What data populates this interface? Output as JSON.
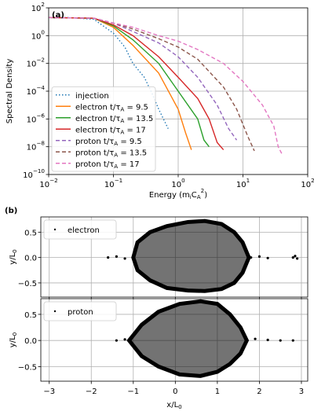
{
  "chart_data": [
    {
      "type": "line",
      "label": "(a)",
      "xlabel": "Energy (m_{i}C_{A}^{2})",
      "ylabel": "Spectral Density",
      "log_x": true,
      "log_y": true,
      "grid": true,
      "legend": "lower left",
      "xlim": [
        0.01,
        100
      ],
      "ylim": [
        1e-10,
        100
      ],
      "xticks": [
        {
          "value": 0.01,
          "label": "10^{−2}"
        },
        {
          "value": 0.1,
          "label": "10^{−1}"
        },
        {
          "value": 1,
          "label": "10^{0}"
        },
        {
          "value": 10,
          "label": "10^{1}"
        },
        {
          "value": 100,
          "label": "10^{2}"
        }
      ],
      "yticks": [
        {
          "value": 1e-10,
          "label": "10^{−10}"
        },
        {
          "value": 1e-08,
          "label": "10^{−8}"
        },
        {
          "value": 1e-06,
          "label": "10^{−6}"
        },
        {
          "value": 0.0001,
          "label": "10^{−4}"
        },
        {
          "value": 0.01,
          "label": "10^{−2}"
        },
        {
          "value": 1,
          "label": "10^{0}"
        },
        {
          "value": 100,
          "label": "10^{2}"
        }
      ],
      "series": [
        {
          "name": "injection",
          "color": "#1f77b4",
          "linestyle": "dotted",
          "x": [
            0.01,
            0.02,
            0.05,
            0.1,
            0.15,
            0.2,
            0.3,
            0.4,
            0.5,
            0.7
          ],
          "values": [
            20,
            20,
            15,
            1.5,
            0.15,
            0.01,
            0.001,
            6e-05,
            5e-06,
            2e-07
          ]
        },
        {
          "name": "electron t/τ_{A} = 9.5",
          "color": "#ff7f0e",
          "linestyle": "solid",
          "x": [
            0.01,
            0.05,
            0.1,
            0.2,
            0.5,
            1,
            1.3,
            1.6
          ],
          "values": [
            20,
            18,
            4,
            0.2,
            0.002,
            5e-06,
            1e-07,
            6e-09
          ]
        },
        {
          "name": "electron t/τ_{A} = 13.5",
          "color": "#2ca02c",
          "linestyle": "solid",
          "x": [
            0.01,
            0.05,
            0.1,
            0.2,
            0.5,
            1,
            2,
            2.5,
            3
          ],
          "values": [
            20,
            18,
            5,
            0.5,
            0.01,
            0.0001,
            1e-06,
            3e-08,
            1e-08
          ]
        },
        {
          "name": "electron t/τ_{A} = 17",
          "color": "#d62728",
          "linestyle": "solid",
          "x": [
            0.01,
            0.05,
            0.1,
            0.2,
            0.5,
            1,
            2,
            3,
            4,
            5
          ],
          "values": [
            20,
            18,
            6,
            1,
            0.03,
            0.001,
            3e-05,
            1e-06,
            2e-08,
            6e-09
          ]
        },
        {
          "name": "proton t/τ_{A} = 9.5",
          "color": "#9467bd",
          "linestyle": "dashed",
          "x": [
            0.01,
            0.05,
            0.1,
            0.2,
            0.5,
            1,
            2,
            4,
            6,
            8
          ],
          "values": [
            20,
            18,
            8,
            2,
            0.3,
            0.03,
            0.001,
            1e-05,
            2e-07,
            3e-08
          ]
        },
        {
          "name": "proton t/τ_{A} = 13.5",
          "color": "#8c564b",
          "linestyle": "dashed",
          "x": [
            0.01,
            0.05,
            0.1,
            0.2,
            0.5,
            1,
            2,
            5,
            8,
            12,
            15
          ],
          "values": [
            20,
            18,
            8,
            3,
            0.6,
            0.15,
            0.02,
            0.0002,
            5e-06,
            5e-08,
            5e-09
          ]
        },
        {
          "name": "proton t/τ_{A} = 17",
          "color": "#e377c2",
          "linestyle": "dashed",
          "x": [
            0.01,
            0.05,
            0.1,
            0.2,
            0.5,
            1,
            2,
            5,
            10,
            20,
            30,
            35,
            40
          ],
          "values": [
            20,
            18,
            8,
            4,
            1,
            0.4,
            0.1,
            0.01,
            0.0005,
            1e-05,
            3e-07,
            1e-08,
            3e-09
          ]
        }
      ]
    },
    {
      "type": "scatter",
      "label": "(b)",
      "ylabel": "y/L_{0}",
      "grid": true,
      "legend": "upper left",
      "xticklabels": false,
      "xlim": [
        -3.2,
        3.15
      ],
      "ylim": [
        -0.78,
        0.8
      ],
      "xticks": [
        {
          "value": -3,
          "label": "−3"
        },
        {
          "value": -2,
          "label": "−2"
        },
        {
          "value": -1,
          "label": "−1"
        },
        0,
        1,
        2,
        3
      ],
      "yticks": [
        {
          "value": -0.5,
          "label": "−0.5"
        },
        {
          "value": 0,
          "label": "0.0"
        },
        0.5
      ],
      "series": [
        {
          "name": "electron",
          "color": "#000000",
          "fill": true,
          "x": [
            -1.0,
            -0.9,
            -0.6,
            -0.2,
            0.3,
            0.7,
            1.1,
            1.4,
            1.6,
            1.7,
            1.75,
            1.7,
            1.6,
            1.4,
            1.1,
            0.7,
            0.3,
            -0.2,
            -0.6,
            -0.9
          ],
          "values": [
            0,
            0.3,
            0.5,
            0.62,
            0.7,
            0.72,
            0.66,
            0.5,
            0.3,
            0.1,
            0,
            -0.1,
            -0.3,
            -0.5,
            -0.62,
            -0.66,
            -0.65,
            -0.6,
            -0.45,
            -0.25
          ]
        },
        {
          "color": "#000000",
          "fill": false,
          "x": [
            -1.6,
            -1.4,
            -1.2,
            1.8,
            2.0,
            2.2,
            2.8,
            2.85,
            2.9
          ],
          "values": [
            0,
            0.02,
            -0.02,
            0,
            0.02,
            -0.01,
            0,
            0.03,
            -0.02
          ]
        }
      ]
    },
    {
      "type": "scatter",
      "xlabel": "x/L_{0}",
      "ylabel": "y/L_{0}",
      "grid": true,
      "legend": "upper left",
      "xlim": [
        -3.2,
        3.15
      ],
      "ylim": [
        -0.78,
        0.8
      ],
      "xticks": [
        {
          "value": -3,
          "label": "−3"
        },
        {
          "value": -2,
          "label": "−2"
        },
        {
          "value": -1,
          "label": "−1"
        },
        0,
        1,
        2,
        3
      ],
      "yticks": [
        {
          "value": -0.5,
          "label": "−0.5"
        },
        {
          "value": 0,
          "label": "0.0"
        },
        0.5
      ],
      "series": [
        {
          "name": "proton",
          "color": "#000000",
          "fill": true,
          "x": [
            -1.1,
            -0.8,
            -0.4,
            0.1,
            0.6,
            1.0,
            1.3,
            1.55,
            1.7,
            1.55,
            1.3,
            1.0,
            0.6,
            0.1,
            -0.4,
            -0.8
          ],
          "values": [
            0,
            0.3,
            0.55,
            0.7,
            0.75,
            0.7,
            0.5,
            0.25,
            0,
            -0.25,
            -0.45,
            -0.6,
            -0.68,
            -0.65,
            -0.5,
            -0.3
          ]
        },
        {
          "color": "#000000",
          "fill": false,
          "x": [
            -1.4,
            -1.2,
            1.9,
            2.2,
            2.5,
            2.8
          ],
          "values": [
            0,
            0.02,
            0.03,
            0.01,
            0,
            0
          ]
        }
      ]
    }
  ]
}
